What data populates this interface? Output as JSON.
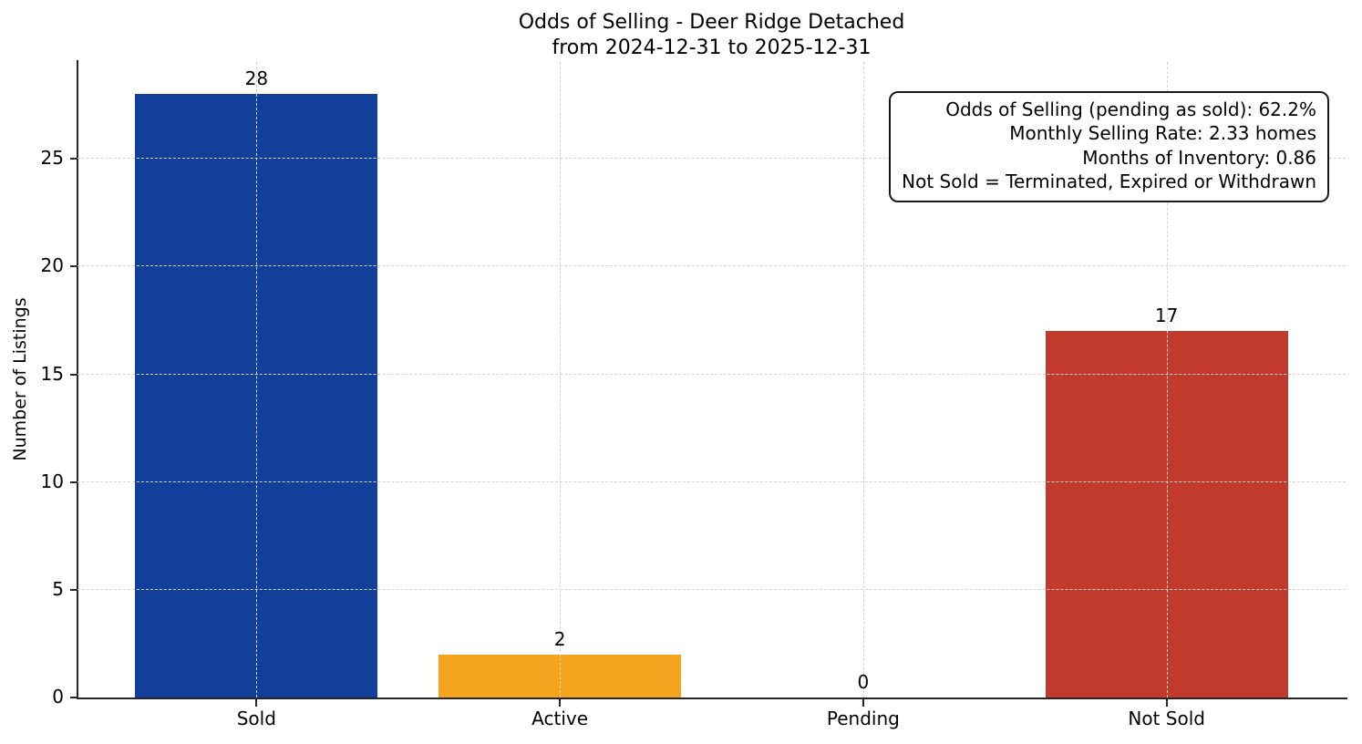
{
  "chart_data": {
    "type": "bar",
    "title": "Odds of Selling - Deer Ridge Detached",
    "subtitle": "from 2024-12-31 to 2025-12-31",
    "ylabel": "Number of Listings",
    "xlabel": "",
    "categories": [
      "Sold",
      "Active",
      "Pending",
      "Not Sold"
    ],
    "values": [
      28,
      2,
      0,
      17
    ],
    "bar_colors": [
      "#123f9a",
      "#f4a41d",
      null,
      "#c13a2c"
    ],
    "yticks": [
      0,
      5,
      10,
      15,
      20,
      25
    ],
    "ylim": [
      0,
      29.5
    ],
    "xlim": [
      -0.59,
      3.59
    ],
    "bar_width": 0.8,
    "grid": {
      "style": "dashed",
      "axes": "both",
      "color": "#d4d4d4",
      "above_bars": true
    },
    "legend": "none",
    "annotation": {
      "lines": [
        "Odds of Selling (pending as sold): 62.2%",
        "Monthly Selling Rate: 2.33 homes",
        "Months of Inventory: 0.86",
        "Not Sold = Terminated, Expired or Withdrawn"
      ]
    },
    "colors": {
      "sold_bar": "#123f9a",
      "active_bar": "#f4a41d",
      "not_sold_bar": "#c13a2c",
      "spine": "#262626",
      "text": "#000000",
      "background": "#ffffff"
    }
  }
}
